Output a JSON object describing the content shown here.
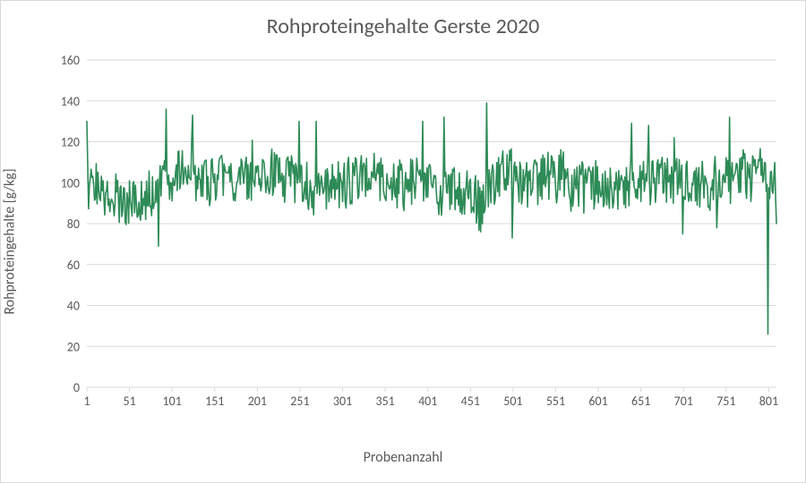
{
  "chart": {
    "type": "line",
    "title": "Rohproteingehalte Gerste 2020",
    "title_fontsize": 24,
    "title_color": "#595959",
    "xlabel": "Probenanzahl",
    "ylabel": "Rohproteingehalte [g/kg]",
    "label_fontsize": 16,
    "label_color": "#595959",
    "tick_fontsize": 14,
    "tick_color": "#595959",
    "background_color": "#ffffff",
    "border_color": "#d9d9d9",
    "grid_color": "#d9d9d9",
    "ylim": [
      0,
      160
    ],
    "ytick_step": 20,
    "xlim": [
      1,
      810
    ],
    "xtick_start": 1,
    "xtick_step": 50,
    "xtick_last": 801,
    "xticks": [
      1,
      51,
      101,
      151,
      201,
      251,
      301,
      351,
      401,
      451,
      501,
      551,
      601,
      651,
      701,
      751,
      801
    ],
    "line_color": "#2e8b57",
    "line_width": 1.6,
    "data_base": 100,
    "data_noise_amp": 24,
    "data_len": 810,
    "special_points": {
      "1": 130,
      "94": 136,
      "85": 69,
      "125": 133,
      "250": 130,
      "270": 130,
      "395": 130,
      "420": 132,
      "470": 139,
      "500": 73,
      "640": 129,
      "660": 128,
      "690": 122,
      "700": 75,
      "740": 78,
      "755": 132,
      "800": 26,
      "810": 80
    },
    "seed": 424242
  }
}
